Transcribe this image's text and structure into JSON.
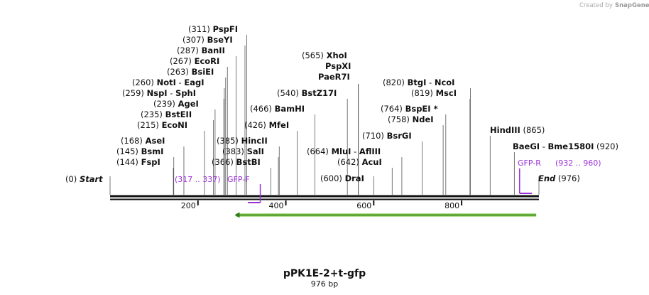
{
  "branding": {
    "text": "Created by",
    "brand": "SnapGene"
  },
  "title": "pPK1E-2+t-gfp",
  "subtitle": "976 bp",
  "sequence": {
    "start": 0,
    "end": 976,
    "start_label": "Start",
    "end_label": "End"
  },
  "ticks": [
    200,
    400,
    600,
    800
  ],
  "sites": [
    {
      "pos": "(0)",
      "names": [
        "Start"
      ],
      "italic": true,
      "bp": 0
    },
    {
      "pos": "(144)",
      "names": [
        "FspI"
      ],
      "bp": 144
    },
    {
      "pos": "(145)",
      "names": [
        "BsmI"
      ],
      "bp": 145
    },
    {
      "pos": "(168)",
      "names": [
        "AseI"
      ],
      "bp": 168
    },
    {
      "pos": "(215)",
      "names": [
        "EcoNI"
      ],
      "bp": 215
    },
    {
      "pos": "(235)",
      "names": [
        "BstEII"
      ],
      "bp": 235
    },
    {
      "pos": "(239)",
      "names": [
        "AgeI"
      ],
      "bp": 239
    },
    {
      "pos": "(259)",
      "names": [
        "NspI",
        "SphI"
      ],
      "bp": 259
    },
    {
      "pos": "(260)",
      "names": [
        "NotI",
        "EagI"
      ],
      "bp": 260
    },
    {
      "pos": "(263)",
      "names": [
        "BsiEI"
      ],
      "bp": 263
    },
    {
      "pos": "(267)",
      "names": [
        "EcoRI"
      ],
      "bp": 267
    },
    {
      "pos": "(287)",
      "names": [
        "BanII"
      ],
      "bp": 287
    },
    {
      "pos": "(307)",
      "names": [
        "BseYI"
      ],
      "bp": 307
    },
    {
      "pos": "(311)",
      "names": [
        "PspFI"
      ],
      "bp": 311
    },
    {
      "pos": "(366)",
      "names": [
        "BstBI"
      ],
      "bp": 366
    },
    {
      "pos": "(383)",
      "names": [
        "SalI"
      ],
      "bp": 383
    },
    {
      "pos": "(385)",
      "names": [
        "HincII"
      ],
      "bp": 385
    },
    {
      "pos": "(426)",
      "names": [
        "MfeI"
      ],
      "bp": 426
    },
    {
      "pos": "(466)",
      "names": [
        "BamHI"
      ],
      "bp": 466
    },
    {
      "pos": "(540)",
      "names": [
        "BstZ17I"
      ],
      "bp": 540
    },
    {
      "pos": "(565)",
      "names": [
        "XhoI"
      ],
      "bp": 565
    },
    {
      "pos": "",
      "names": [
        "PspXI"
      ],
      "bp": 565
    },
    {
      "pos": "",
      "names": [
        "PaeR7I"
      ],
      "bp": 565
    },
    {
      "pos": "(600)",
      "names": [
        "DraI"
      ],
      "bp": 600
    },
    {
      "pos": "(642)",
      "names": [
        "AcuI"
      ],
      "bp": 642
    },
    {
      "pos": "(664)",
      "names": [
        "MluI",
        "AflIII"
      ],
      "bp": 664
    },
    {
      "pos": "(710)",
      "names": [
        "BsrGI"
      ],
      "bp": 710
    },
    {
      "pos": "(758)",
      "names": [
        "NdeI"
      ],
      "bp": 758
    },
    {
      "pos": "(764)",
      "names": [
        "BspEI *"
      ],
      "bp": 764
    },
    {
      "pos": "(819)",
      "names": [
        "MscI"
      ],
      "bp": 819
    },
    {
      "pos": "(820)",
      "names": [
        "BtgI",
        "NcoI"
      ],
      "bp": 820
    },
    {
      "pos": "(865)",
      "names": [
        "HindIII"
      ],
      "bp": 865,
      "pos_after": true
    },
    {
      "pos": "(920)",
      "names": [
        "BaeGI",
        "Bme1580I"
      ],
      "bp": 920,
      "pos_after": true
    },
    {
      "pos": "(976)",
      "names": [
        "End"
      ],
      "italic": true,
      "bp": 976,
      "pos_after": true
    }
  ],
  "primers": [
    {
      "name": "GFP-F",
      "range": "(317 .. 337)",
      "direction": "forward",
      "from": 317,
      "to": 337
    },
    {
      "name": "GFP-R",
      "range": "(932 .. 960)",
      "direction": "reverse",
      "from": 932,
      "to": 960
    }
  ],
  "feature": {
    "name": "",
    "from": 277,
    "to": 976,
    "direction": "reverse",
    "color": "#8ed05a",
    "edge": "#2e7d1b"
  },
  "colors": {
    "primer": "#9b30d9",
    "backbone": "#111111"
  }
}
